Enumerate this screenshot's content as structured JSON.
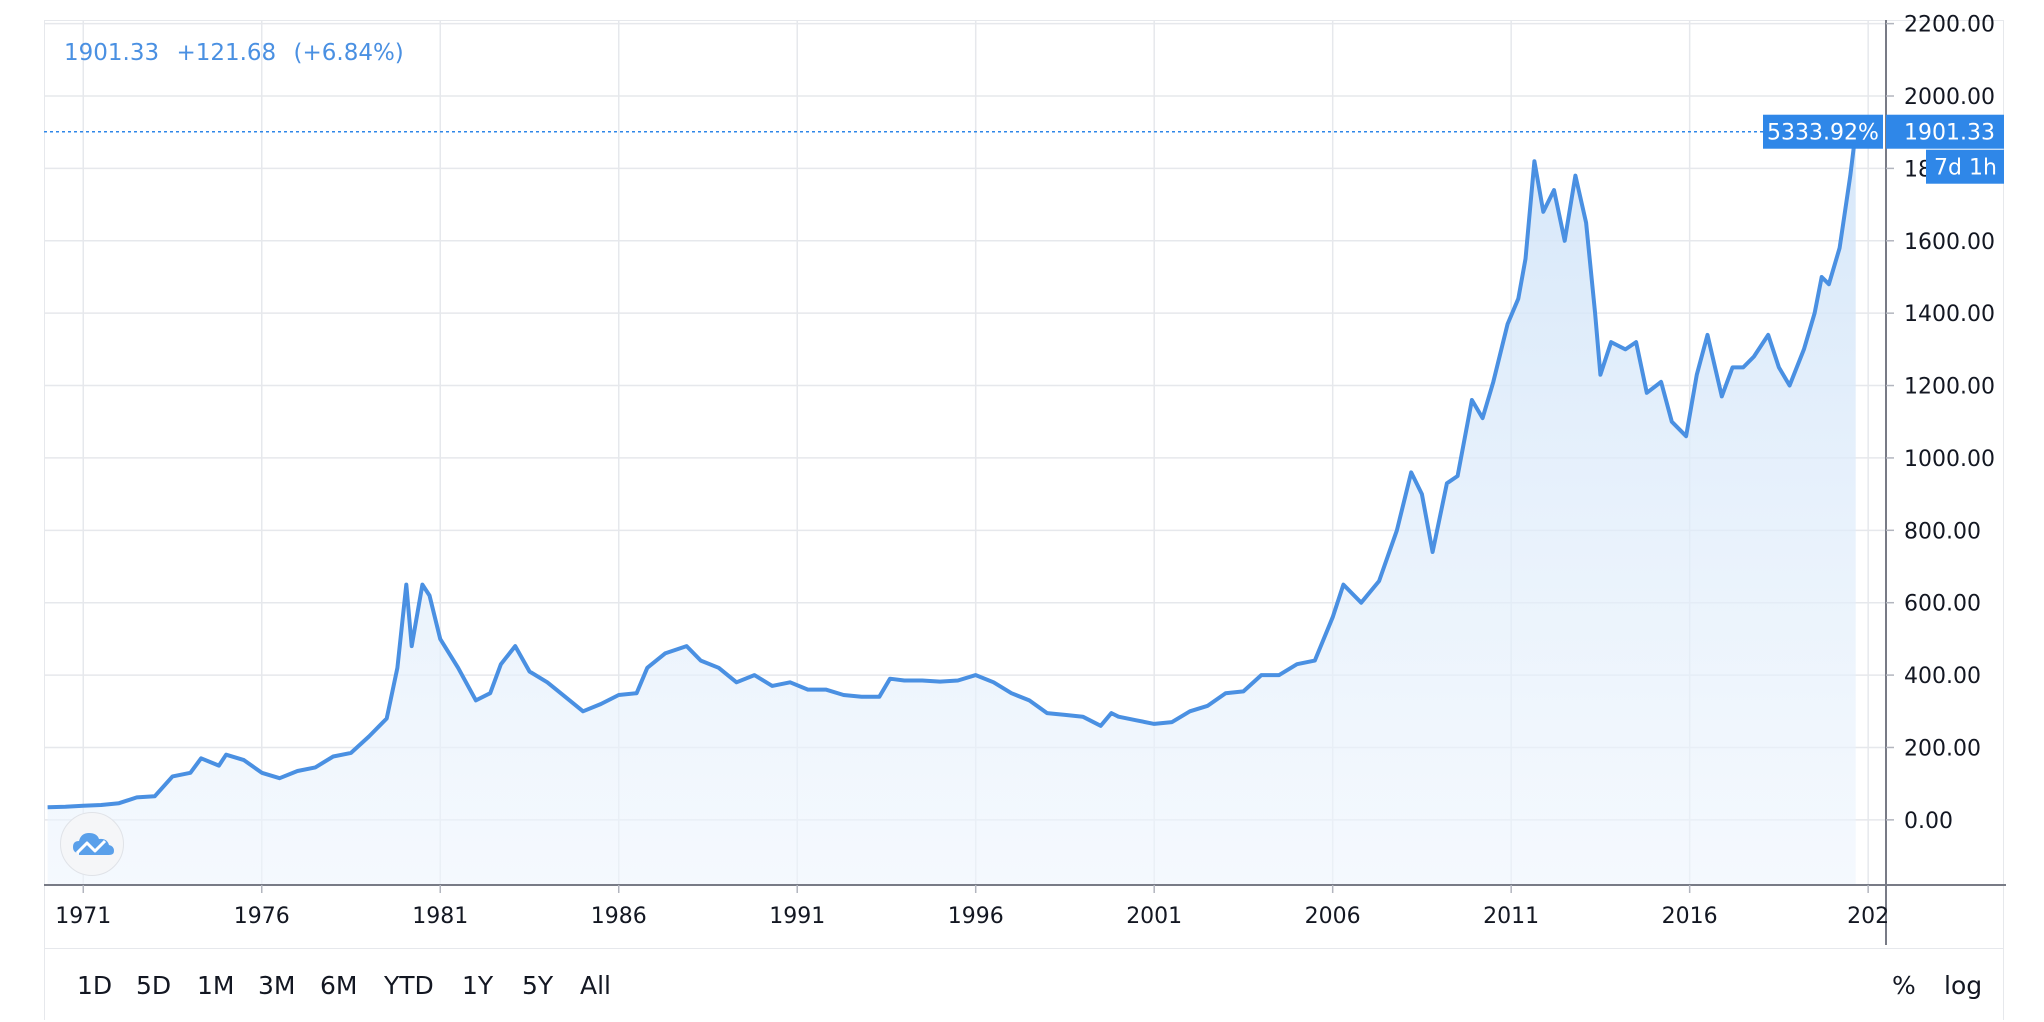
{
  "legend": {
    "price": "1901.33",
    "change": "+121.68",
    "change_pct": "(+6.84%)"
  },
  "timeframes": [
    "1D",
    "5D",
    "1M",
    "3M",
    "6M",
    "YTD",
    "1Y",
    "5Y",
    "All"
  ],
  "scale_options": {
    "percent": "%",
    "log": "log"
  },
  "badges": {
    "percent": "5333.92%",
    "price": "1901.33",
    "countdown": "7d 1h"
  },
  "colors": {
    "line": "#4a90e2",
    "accent": "#2f87e8",
    "grid": "#e6e8ec"
  },
  "logo_icon": "cloud-chart-icon",
  "chart_data": {
    "type": "area",
    "x_tick_labels": [
      "1971",
      "1976",
      "1981",
      "1986",
      "1991",
      "1996",
      "2001",
      "2006",
      "2011",
      "2016",
      "202"
    ],
    "y_tick_labels": [
      "0.00",
      "200.00",
      "400.00",
      "600.00",
      "800.00",
      "1000.00",
      "1200.00",
      "1400.00",
      "1600.00",
      "1800.00",
      "2000.00",
      "2200.00"
    ],
    "ylim": [
      -180,
      2210
    ],
    "xlim": [
      1969.9,
      2021.5
    ],
    "last_value": 1901.33,
    "series": [
      {
        "points": [
          [
            1970.0,
            35
          ],
          [
            1970.5,
            36
          ],
          [
            1971.0,
            39
          ],
          [
            1971.5,
            41
          ],
          [
            1972.0,
            46
          ],
          [
            1972.5,
            62
          ],
          [
            1973.0,
            65
          ],
          [
            1973.5,
            120
          ],
          [
            1974.0,
            130
          ],
          [
            1974.3,
            170
          ],
          [
            1974.8,
            150
          ],
          [
            1975.0,
            180
          ],
          [
            1975.5,
            165
          ],
          [
            1976.0,
            130
          ],
          [
            1976.5,
            115
          ],
          [
            1977.0,
            135
          ],
          [
            1977.5,
            145
          ],
          [
            1978.0,
            175
          ],
          [
            1978.5,
            185
          ],
          [
            1979.0,
            230
          ],
          [
            1979.5,
            280
          ],
          [
            1979.8,
            420
          ],
          [
            1980.05,
            650
          ],
          [
            1980.2,
            480
          ],
          [
            1980.5,
            650
          ],
          [
            1980.7,
            620
          ],
          [
            1981.0,
            500
          ],
          [
            1981.5,
            420
          ],
          [
            1982.0,
            330
          ],
          [
            1982.4,
            350
          ],
          [
            1982.7,
            430
          ],
          [
            1983.1,
            480
          ],
          [
            1983.5,
            410
          ],
          [
            1984.0,
            380
          ],
          [
            1984.5,
            340
          ],
          [
            1985.0,
            300
          ],
          [
            1985.5,
            320
          ],
          [
            1986.0,
            345
          ],
          [
            1986.5,
            350
          ],
          [
            1986.8,
            420
          ],
          [
            1987.3,
            460
          ],
          [
            1987.9,
            480
          ],
          [
            1988.3,
            440
          ],
          [
            1988.8,
            420
          ],
          [
            1989.3,
            380
          ],
          [
            1989.8,
            400
          ],
          [
            1990.3,
            370
          ],
          [
            1990.8,
            380
          ],
          [
            1991.3,
            360
          ],
          [
            1991.8,
            360
          ],
          [
            1992.3,
            345
          ],
          [
            1992.8,
            340
          ],
          [
            1993.3,
            340
          ],
          [
            1993.6,
            390
          ],
          [
            1994.0,
            385
          ],
          [
            1994.5,
            385
          ],
          [
            1995.0,
            382
          ],
          [
            1995.5,
            385
          ],
          [
            1996.0,
            400
          ],
          [
            1996.5,
            380
          ],
          [
            1997.0,
            350
          ],
          [
            1997.5,
            330
          ],
          [
            1998.0,
            295
          ],
          [
            1998.5,
            290
          ],
          [
            1999.0,
            285
          ],
          [
            1999.5,
            260
          ],
          [
            1999.8,
            295
          ],
          [
            2000.0,
            285
          ],
          [
            2000.5,
            275
          ],
          [
            2001.0,
            265
          ],
          [
            2001.5,
            270
          ],
          [
            2002.0,
            300
          ],
          [
            2002.5,
            315
          ],
          [
            2003.0,
            350
          ],
          [
            2003.5,
            355
          ],
          [
            2004.0,
            400
          ],
          [
            2004.5,
            400
          ],
          [
            2005.0,
            430
          ],
          [
            2005.5,
            440
          ],
          [
            2006.0,
            560
          ],
          [
            2006.3,
            650
          ],
          [
            2006.8,
            600
          ],
          [
            2007.3,
            660
          ],
          [
            2007.8,
            800
          ],
          [
            2008.2,
            960
          ],
          [
            2008.5,
            900
          ],
          [
            2008.8,
            740
          ],
          [
            2009.2,
            930
          ],
          [
            2009.5,
            950
          ],
          [
            2009.9,
            1160
          ],
          [
            2010.2,
            1110
          ],
          [
            2010.5,
            1210
          ],
          [
            2010.9,
            1370
          ],
          [
            2011.2,
            1440
          ],
          [
            2011.4,
            1550
          ],
          [
            2011.65,
            1820
          ],
          [
            2011.9,
            1680
          ],
          [
            2012.2,
            1740
          ],
          [
            2012.5,
            1600
          ],
          [
            2012.8,
            1780
          ],
          [
            2013.1,
            1650
          ],
          [
            2013.35,
            1400
          ],
          [
            2013.5,
            1230
          ],
          [
            2013.8,
            1320
          ],
          [
            2014.2,
            1300
          ],
          [
            2014.5,
            1320
          ],
          [
            2014.8,
            1180
          ],
          [
            2015.2,
            1210
          ],
          [
            2015.5,
            1100
          ],
          [
            2015.9,
            1060
          ],
          [
            2016.2,
            1230
          ],
          [
            2016.5,
            1340
          ],
          [
            2016.9,
            1170
          ],
          [
            2017.2,
            1250
          ],
          [
            2017.5,
            1250
          ],
          [
            2017.8,
            1280
          ],
          [
            2018.2,
            1340
          ],
          [
            2018.5,
            1250
          ],
          [
            2018.8,
            1200
          ],
          [
            2019.2,
            1300
          ],
          [
            2019.5,
            1400
          ],
          [
            2019.7,
            1500
          ],
          [
            2019.9,
            1480
          ],
          [
            2020.2,
            1580
          ],
          [
            2020.5,
            1780
          ],
          [
            2020.65,
            1901.33
          ]
        ]
      }
    ]
  }
}
